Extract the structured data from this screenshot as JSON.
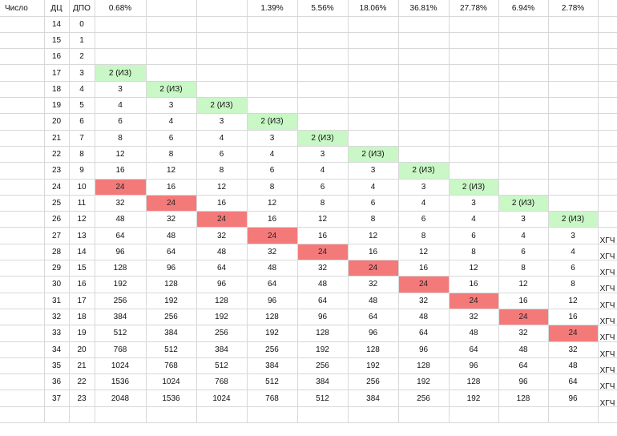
{
  "header": [
    "Число",
    "ДЦ",
    "ДПО",
    "0.68%",
    "",
    "",
    "1.39%",
    "5.56%",
    "18.06%",
    "36.81%",
    "27.78%",
    "6.94%",
    "2.78%",
    ""
  ],
  "rows": [
    [
      "",
      "14",
      "0",
      "",
      "",
      "",
      "",
      "",
      "",
      "",
      "",
      "",
      "",
      ""
    ],
    [
      "",
      "15",
      "1",
      "",
      "",
      "",
      "",
      "",
      "",
      "",
      "",
      "",
      "",
      ""
    ],
    [
      "",
      "16",
      "2",
      "",
      "",
      "",
      "",
      "",
      "",
      "",
      "",
      "",
      "",
      ""
    ],
    [
      "",
      "17",
      "3",
      "2 (ИЗ)",
      "",
      "",
      "",
      "",
      "",
      "",
      "",
      "",
      "",
      ""
    ],
    [
      "",
      "18",
      "4",
      "3",
      "2 (ИЗ)",
      "",
      "",
      "",
      "",
      "",
      "",
      "",
      "",
      ""
    ],
    [
      "",
      "19",
      "5",
      "4",
      "3",
      "2 (ИЗ)",
      "",
      "",
      "",
      "",
      "",
      "",
      "",
      ""
    ],
    [
      "",
      "20",
      "6",
      "6",
      "4",
      "3",
      "2 (ИЗ)",
      "",
      "",
      "",
      "",
      "",
      "",
      ""
    ],
    [
      "",
      "21",
      "7",
      "8",
      "6",
      "4",
      "3",
      "2 (ИЗ)",
      "",
      "",
      "",
      "",
      "",
      ""
    ],
    [
      "",
      "22",
      "8",
      "12",
      "8",
      "6",
      "4",
      "3",
      "2 (ИЗ)",
      "",
      "",
      "",
      "",
      ""
    ],
    [
      "",
      "23",
      "9",
      "16",
      "12",
      "8",
      "6",
      "4",
      "3",
      "2 (ИЗ)",
      "",
      "",
      "",
      ""
    ],
    [
      "",
      "24",
      "10",
      "24",
      "16",
      "12",
      "8",
      "6",
      "4",
      "3",
      "2 (ИЗ)",
      "",
      "",
      ""
    ],
    [
      "",
      "25",
      "11",
      "32",
      "24",
      "16",
      "12",
      "8",
      "6",
      "4",
      "3",
      "2 (ИЗ)",
      "",
      ""
    ],
    [
      "",
      "26",
      "12",
      "48",
      "32",
      "24",
      "16",
      "12",
      "8",
      "6",
      "4",
      "3",
      "2 (ИЗ)",
      ""
    ],
    [
      "",
      "27",
      "13",
      "64",
      "48",
      "32",
      "24",
      "16",
      "12",
      "8",
      "6",
      "4",
      "3",
      "ХГЧ"
    ],
    [
      "",
      "28",
      "14",
      "96",
      "64",
      "48",
      "32",
      "24",
      "16",
      "12",
      "8",
      "6",
      "4",
      "ХГЧ"
    ],
    [
      "",
      "29",
      "15",
      "128",
      "96",
      "64",
      "48",
      "32",
      "24",
      "16",
      "12",
      "8",
      "6",
      "ХГЧ"
    ],
    [
      "",
      "30",
      "16",
      "192",
      "128",
      "96",
      "64",
      "48",
      "32",
      "24",
      "16",
      "12",
      "8",
      "ХГЧ"
    ],
    [
      "",
      "31",
      "17",
      "256",
      "192",
      "128",
      "96",
      "64",
      "48",
      "32",
      "24",
      "16",
      "12",
      "ХГЧ"
    ],
    [
      "",
      "32",
      "18",
      "384",
      "256",
      "192",
      "128",
      "96",
      "64",
      "48",
      "32",
      "24",
      "16",
      "ХГЧ"
    ],
    [
      "",
      "33",
      "19",
      "512",
      "384",
      "256",
      "192",
      "128",
      "96",
      "64",
      "48",
      "32",
      "24",
      "ХГЧ"
    ],
    [
      "",
      "34",
      "20",
      "768",
      "512",
      "384",
      "256",
      "192",
      "128",
      "96",
      "64",
      "48",
      "32",
      "ХГЧ"
    ],
    [
      "",
      "35",
      "21",
      "1024",
      "768",
      "512",
      "384",
      "256",
      "192",
      "128",
      "96",
      "64",
      "48",
      "ХГЧ"
    ],
    [
      "",
      "36",
      "22",
      "1536",
      "1024",
      "768",
      "512",
      "384",
      "256",
      "192",
      "128",
      "96",
      "64",
      "ХГЧ"
    ],
    [
      "",
      "37",
      "23",
      "2048",
      "1536",
      "1024",
      "768",
      "512",
      "384",
      "256",
      "192",
      "128",
      "96",
      "ХГЧ"
    ],
    [
      "",
      "",
      "",
      "",
      "",
      "",
      "",
      "",
      "",
      "",
      "",
      "",
      "",
      ""
    ]
  ],
  "highlights": {
    "green_text": "2 (ИЗ)",
    "green_color": "#c9f7c6",
    "red_color": "#f47a7a",
    "red_cells": [
      [
        10,
        3
      ],
      [
        11,
        4
      ],
      [
        12,
        5
      ],
      [
        13,
        6
      ],
      [
        14,
        7
      ],
      [
        15,
        8
      ],
      [
        16,
        9
      ],
      [
        17,
        10
      ],
      [
        18,
        11
      ],
      [
        19,
        12
      ]
    ]
  }
}
